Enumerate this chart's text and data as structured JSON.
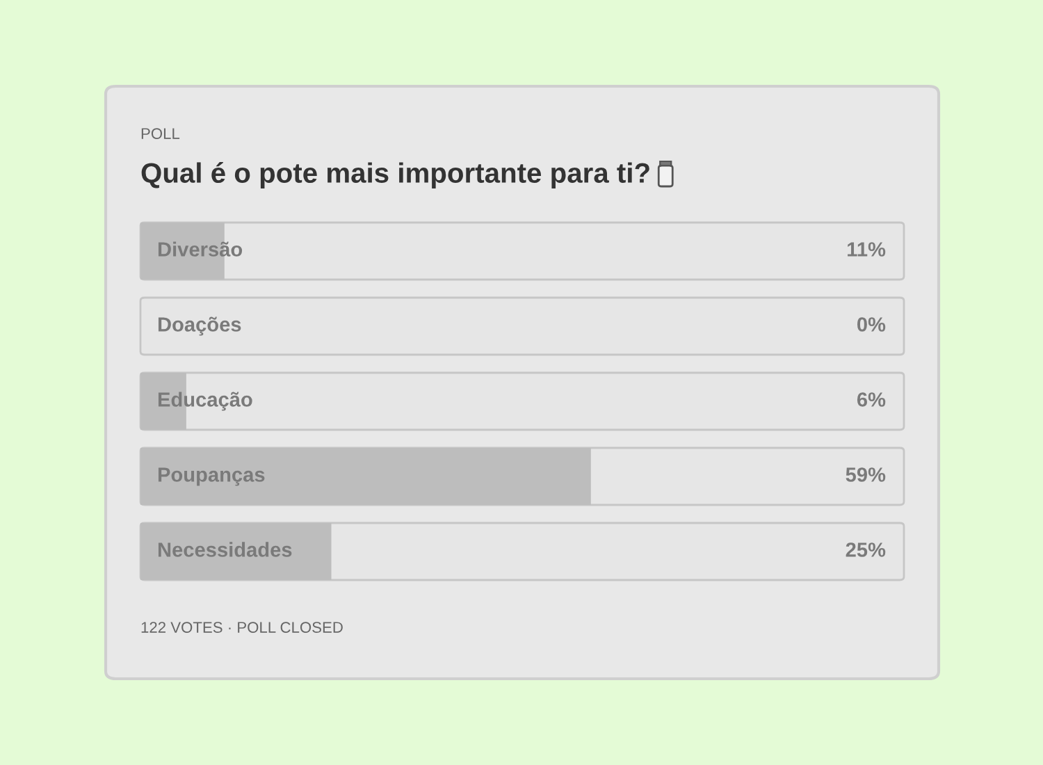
{
  "chart_data": {
    "type": "bar",
    "orientation": "horizontal",
    "subtitle": "POLL",
    "title": "Qual é o pote mais importante para ti?",
    "categories": [
      "Diversão",
      "Doações",
      "Educação",
      "Poupanças",
      "Necessidades"
    ],
    "values": [
      11,
      0,
      6,
      59,
      25
    ],
    "value_labels": [
      "11%",
      "0%",
      "6%",
      "59%",
      "25%"
    ],
    "color": "#bdbdbd",
    "xlim": [
      0,
      100
    ],
    "tick_labels": false,
    "annotations": [
      "122 VOTES · POLL CLOSED"
    ]
  }
}
